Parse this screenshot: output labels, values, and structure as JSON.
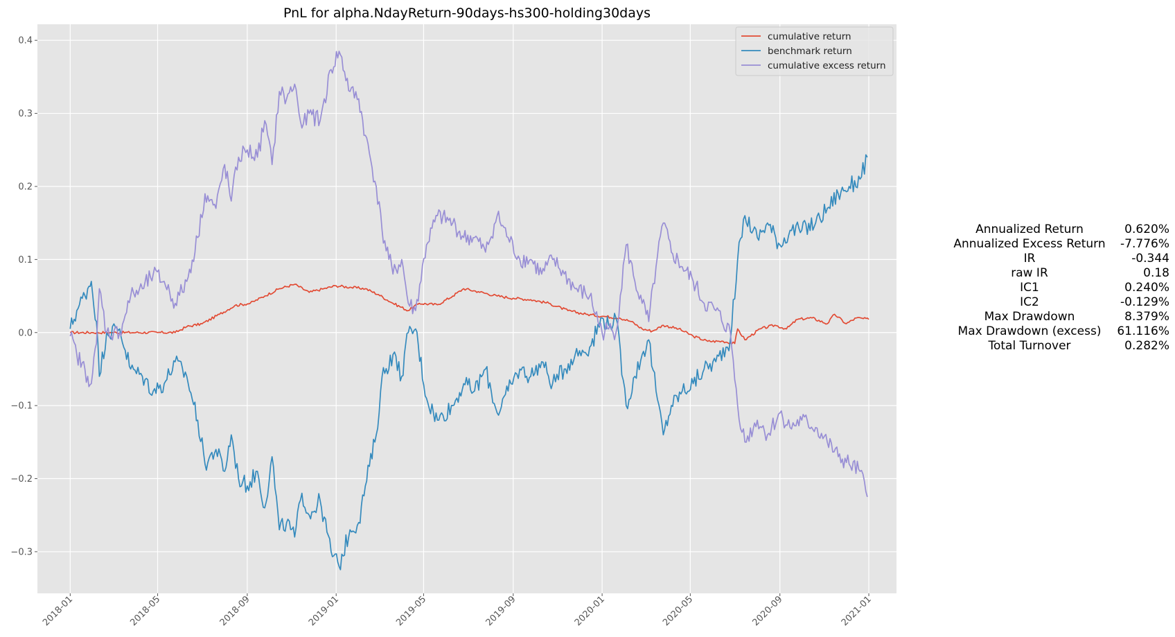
{
  "chart_data": {
    "type": "line",
    "title": "PnL for alpha.NdayReturn-90days-hs300-holding30days",
    "xlabel": "",
    "ylabel": "",
    "x_range": [
      "2017-11-17",
      "2021-02-08"
    ],
    "ylim": [
      -0.357,
      0.422
    ],
    "grid": true,
    "legend_position": "upper-right",
    "x_ticks": [
      "2018-01",
      "2018-05",
      "2018-09",
      "2019-01",
      "2019-05",
      "2019-09",
      "2020-01",
      "2020-05",
      "2020-09",
      "2021-01"
    ],
    "y_ticks": [
      {
        "value": 0.4,
        "label": "0.4"
      },
      {
        "value": 0.3,
        "label": "0.3"
      },
      {
        "value": 0.2,
        "label": "0.2"
      },
      {
        "value": 0.1,
        "label": "0.1"
      },
      {
        "value": 0.0,
        "label": "0.0"
      },
      {
        "value": -0.1,
        "label": "−0.1"
      },
      {
        "value": -0.2,
        "label": "−0.2"
      },
      {
        "value": -0.3,
        "label": "−0.3"
      }
    ],
    "series": [
      {
        "name": "cumulative return",
        "color": "#e24a33",
        "points": [
          [
            "2018-01-01",
            0.0
          ],
          [
            "2018-02-01",
            0.0
          ],
          [
            "2018-03-01",
            0.0
          ],
          [
            "2018-04-01",
            0.0
          ],
          [
            "2018-05-01",
            0.0
          ],
          [
            "2018-05-25",
            0.0
          ],
          [
            "2018-06-10",
            0.008
          ],
          [
            "2018-07-01",
            0.012
          ],
          [
            "2018-07-25",
            0.025
          ],
          [
            "2018-08-15",
            0.037
          ],
          [
            "2018-09-05",
            0.04
          ],
          [
            "2018-09-25",
            0.05
          ],
          [
            "2018-10-15",
            0.06
          ],
          [
            "2018-11-05",
            0.066
          ],
          [
            "2018-11-25",
            0.055
          ],
          [
            "2018-12-15",
            0.06
          ],
          [
            "2019-01-01",
            0.064
          ],
          [
            "2019-01-20",
            0.062
          ],
          [
            "2019-02-10",
            0.06
          ],
          [
            "2019-02-28",
            0.052
          ],
          [
            "2019-03-20",
            0.04
          ],
          [
            "2019-04-10",
            0.03
          ],
          [
            "2019-04-25",
            0.04
          ],
          [
            "2019-05-20",
            0.038
          ],
          [
            "2019-06-10",
            0.05
          ],
          [
            "2019-06-25",
            0.06
          ],
          [
            "2019-07-15",
            0.056
          ],
          [
            "2019-08-10",
            0.05
          ],
          [
            "2019-09-01",
            0.047
          ],
          [
            "2019-09-25",
            0.045
          ],
          [
            "2019-10-20",
            0.04
          ],
          [
            "2019-11-15",
            0.03
          ],
          [
            "2019-12-10",
            0.025
          ],
          [
            "2020-01-05",
            0.022
          ],
          [
            "2020-01-25",
            0.02
          ],
          [
            "2020-02-10",
            0.015
          ],
          [
            "2020-02-25",
            0.005
          ],
          [
            "2020-03-10",
            0.002
          ],
          [
            "2020-03-25",
            0.01
          ],
          [
            "2020-04-15",
            0.005
          ],
          [
            "2020-05-05",
            -0.005
          ],
          [
            "2020-05-25",
            -0.012
          ],
          [
            "2020-06-15",
            -0.012
          ],
          [
            "2020-07-01",
            -0.015
          ],
          [
            "2020-07-05",
            0.005
          ],
          [
            "2020-07-15",
            -0.01
          ],
          [
            "2020-08-05",
            0.005
          ],
          [
            "2020-08-25",
            0.01
          ],
          [
            "2020-09-10",
            0.005
          ],
          [
            "2020-09-25",
            0.018
          ],
          [
            "2020-10-15",
            0.02
          ],
          [
            "2020-11-05",
            0.012
          ],
          [
            "2020-11-15",
            0.025
          ],
          [
            "2020-12-01",
            0.012
          ],
          [
            "2020-12-15",
            0.02
          ],
          [
            "2021-01-01",
            0.018
          ]
        ]
      },
      {
        "name": "benchmark return",
        "color": "#348abd",
        "points": [
          [
            "2018-01-01",
            0.005
          ],
          [
            "2018-01-10",
            0.03
          ],
          [
            "2018-01-25",
            0.06
          ],
          [
            "2018-01-30",
            0.07
          ],
          [
            "2018-02-06",
            0.015
          ],
          [
            "2018-02-10",
            -0.06
          ],
          [
            "2018-02-20",
            0.0
          ],
          [
            "2018-03-10",
            0.005
          ],
          [
            "2018-03-25",
            -0.05
          ],
          [
            "2018-04-10",
            -0.06
          ],
          [
            "2018-04-25",
            -0.08
          ],
          [
            "2018-05-10",
            -0.07
          ],
          [
            "2018-05-25",
            -0.04
          ],
          [
            "2018-06-10",
            -0.06
          ],
          [
            "2018-06-25",
            -0.12
          ],
          [
            "2018-07-05",
            -0.18
          ],
          [
            "2018-07-20",
            -0.16
          ],
          [
            "2018-08-01",
            -0.19
          ],
          [
            "2018-08-10",
            -0.14
          ],
          [
            "2018-08-20",
            -0.2
          ],
          [
            "2018-09-01",
            -0.21
          ],
          [
            "2018-09-15",
            -0.19
          ],
          [
            "2018-09-25",
            -0.24
          ],
          [
            "2018-10-05",
            -0.17
          ],
          [
            "2018-10-15",
            -0.27
          ],
          [
            "2018-10-25",
            -0.26
          ],
          [
            "2018-11-05",
            -0.28
          ],
          [
            "2018-11-15",
            -0.22
          ],
          [
            "2018-11-25",
            -0.25
          ],
          [
            "2018-12-10",
            -0.23
          ],
          [
            "2018-12-25",
            -0.3
          ],
          [
            "2019-01-05",
            -0.32
          ],
          [
            "2019-01-20",
            -0.27
          ],
          [
            "2019-02-01",
            -0.26
          ],
          [
            "2019-02-10",
            -0.21
          ],
          [
            "2019-02-25",
            -0.14
          ],
          [
            "2019-03-05",
            -0.06
          ],
          [
            "2019-03-20",
            -0.03
          ],
          [
            "2019-04-01",
            -0.06
          ],
          [
            "2019-04-10",
            0.0
          ],
          [
            "2019-04-20",
            0.005
          ],
          [
            "2019-05-05",
            -0.09
          ],
          [
            "2019-05-20",
            -0.12
          ],
          [
            "2019-06-10",
            -0.1
          ],
          [
            "2019-06-25",
            -0.07
          ],
          [
            "2019-07-10",
            -0.08
          ],
          [
            "2019-07-25",
            -0.05
          ],
          [
            "2019-08-10",
            -0.11
          ],
          [
            "2019-08-25",
            -0.08
          ],
          [
            "2019-09-10",
            -0.05
          ],
          [
            "2019-09-25",
            -0.06
          ],
          [
            "2019-10-10",
            -0.04
          ],
          [
            "2019-10-25",
            -0.07
          ],
          [
            "2019-11-10",
            -0.05
          ],
          [
            "2019-11-25",
            -0.03
          ],
          [
            "2019-12-15",
            -0.02
          ],
          [
            "2020-01-01",
            0.02
          ],
          [
            "2020-01-10",
            0.01
          ],
          [
            "2020-01-20",
            0.02
          ],
          [
            "2020-02-03",
            -0.1
          ],
          [
            "2020-02-15",
            -0.06
          ],
          [
            "2020-02-25",
            -0.03
          ],
          [
            "2020-03-05",
            -0.01
          ],
          [
            "2020-03-15",
            -0.08
          ],
          [
            "2020-03-25",
            -0.14
          ],
          [
            "2020-04-05",
            -0.1
          ],
          [
            "2020-04-20",
            -0.08
          ],
          [
            "2020-05-05",
            -0.07
          ],
          [
            "2020-05-20",
            -0.05
          ],
          [
            "2020-06-05",
            -0.04
          ],
          [
            "2020-06-25",
            -0.01
          ],
          [
            "2020-07-05",
            0.1
          ],
          [
            "2020-07-15",
            0.16
          ],
          [
            "2020-08-01",
            0.13
          ],
          [
            "2020-08-15",
            0.15
          ],
          [
            "2020-09-01",
            0.12
          ],
          [
            "2020-09-15",
            0.14
          ],
          [
            "2020-10-01",
            0.14
          ],
          [
            "2020-10-20",
            0.15
          ],
          [
            "2020-11-05",
            0.17
          ],
          [
            "2020-11-20",
            0.19
          ],
          [
            "2020-12-05",
            0.2
          ],
          [
            "2020-12-20",
            0.21
          ],
          [
            "2020-12-30",
            0.24
          ]
        ]
      },
      {
        "name": "cumulative excess return",
        "color": "#988ed5",
        "points": [
          [
            "2018-01-01",
            -0.005
          ],
          [
            "2018-01-10",
            -0.03
          ],
          [
            "2018-01-25",
            -0.06
          ],
          [
            "2018-01-30",
            -0.07
          ],
          [
            "2018-02-06",
            -0.015
          ],
          [
            "2018-02-10",
            0.06
          ],
          [
            "2018-02-20",
            0.0
          ],
          [
            "2018-03-10",
            0.0
          ],
          [
            "2018-03-25",
            0.05
          ],
          [
            "2018-04-10",
            0.06
          ],
          [
            "2018-04-25",
            0.08
          ],
          [
            "2018-05-10",
            0.07
          ],
          [
            "2018-05-25",
            0.04
          ],
          [
            "2018-06-10",
            0.07
          ],
          [
            "2018-06-25",
            0.13
          ],
          [
            "2018-07-05",
            0.19
          ],
          [
            "2018-07-20",
            0.17
          ],
          [
            "2018-08-01",
            0.23
          ],
          [
            "2018-08-10",
            0.18
          ],
          [
            "2018-08-20",
            0.24
          ],
          [
            "2018-09-01",
            0.25
          ],
          [
            "2018-09-15",
            0.24
          ],
          [
            "2018-09-25",
            0.29
          ],
          [
            "2018-10-05",
            0.23
          ],
          [
            "2018-10-15",
            0.33
          ],
          [
            "2018-10-25",
            0.32
          ],
          [
            "2018-11-05",
            0.34
          ],
          [
            "2018-11-15",
            0.28
          ],
          [
            "2018-11-25",
            0.3
          ],
          [
            "2018-12-10",
            0.29
          ],
          [
            "2018-12-25",
            0.36
          ],
          [
            "2019-01-05",
            0.385
          ],
          [
            "2019-01-20",
            0.33
          ],
          [
            "2019-02-01",
            0.32
          ],
          [
            "2019-02-10",
            0.27
          ],
          [
            "2019-02-25",
            0.2
          ],
          [
            "2019-03-05",
            0.14
          ],
          [
            "2019-03-20",
            0.08
          ],
          [
            "2019-04-01",
            0.1
          ],
          [
            "2019-04-10",
            0.04
          ],
          [
            "2019-04-20",
            0.03
          ],
          [
            "2019-05-05",
            0.12
          ],
          [
            "2019-05-20",
            0.16
          ],
          [
            "2019-06-10",
            0.15
          ],
          [
            "2019-06-25",
            0.13
          ],
          [
            "2019-07-10",
            0.13
          ],
          [
            "2019-07-25",
            0.11
          ],
          [
            "2019-08-10",
            0.16
          ],
          [
            "2019-08-25",
            0.13
          ],
          [
            "2019-09-10",
            0.1
          ],
          [
            "2019-09-25",
            0.1
          ],
          [
            "2019-10-10",
            0.08
          ],
          [
            "2019-10-25",
            0.1
          ],
          [
            "2019-11-10",
            0.08
          ],
          [
            "2019-11-25",
            0.06
          ],
          [
            "2019-12-15",
            0.05
          ],
          [
            "2020-01-01",
            0.0
          ],
          [
            "2020-01-10",
            0.005
          ],
          [
            "2020-01-20",
            0.0
          ],
          [
            "2020-02-03",
            0.12
          ],
          [
            "2020-02-15",
            0.07
          ],
          [
            "2020-02-25",
            0.04
          ],
          [
            "2020-03-05",
            0.015
          ],
          [
            "2020-03-15",
            0.09
          ],
          [
            "2020-03-25",
            0.15
          ],
          [
            "2020-04-05",
            0.11
          ],
          [
            "2020-04-20",
            0.09
          ],
          [
            "2020-05-05",
            0.07
          ],
          [
            "2020-05-20",
            0.04
          ],
          [
            "2020-06-05",
            0.03
          ],
          [
            "2020-06-25",
            0.0
          ],
          [
            "2020-07-05",
            -0.1
          ],
          [
            "2020-07-15",
            -0.15
          ],
          [
            "2020-08-01",
            -0.12
          ],
          [
            "2020-08-15",
            -0.14
          ],
          [
            "2020-09-01",
            -0.11
          ],
          [
            "2020-09-15",
            -0.13
          ],
          [
            "2020-10-01",
            -0.12
          ],
          [
            "2020-10-20",
            -0.13
          ],
          [
            "2020-11-05",
            -0.15
          ],
          [
            "2020-11-20",
            -0.17
          ],
          [
            "2020-12-05",
            -0.18
          ],
          [
            "2020-12-20",
            -0.19
          ],
          [
            "2020-12-30",
            -0.225
          ]
        ]
      }
    ]
  },
  "stats_table": [
    {
      "label": "Annualized Return",
      "value": "0.620%"
    },
    {
      "label": "Annualized Excess Return",
      "value": "-7.776%"
    },
    {
      "label": "IR",
      "value": "-0.344"
    },
    {
      "label": "raw IR",
      "value": "0.18"
    },
    {
      "label": "IC1",
      "value": "0.240%"
    },
    {
      "label": "IC2",
      "value": "-0.129%"
    },
    {
      "label": "Max Drawdown",
      "value": "8.379%"
    },
    {
      "label": "Max Drawdown (excess)",
      "value": "61.116%"
    },
    {
      "label": "Total Turnover",
      "value": "0.282%"
    }
  ]
}
